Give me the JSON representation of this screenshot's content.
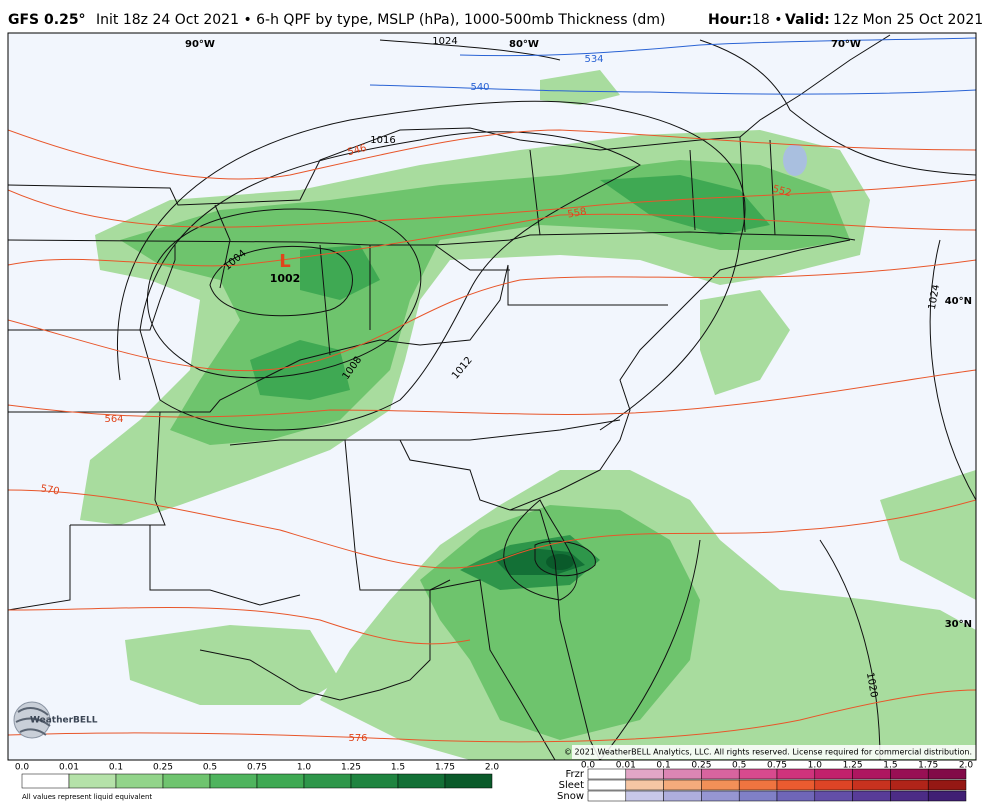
{
  "header": {
    "model": "GFS 0.25°",
    "description": "Init 18z 24 Oct 2021 • 6-h QPF by type, MSLP (hPa), 1000-500mb Thickness (dm)",
    "hour_label": "Hour:",
    "hour": "18 •",
    "valid_label": "Valid:",
    "valid": "12z Mon 25 Oct 2021"
  },
  "map": {
    "longitudes": [
      "90°W",
      "80°W",
      "70°W"
    ],
    "latitudes": [
      "40°N",
      "30°N"
    ],
    "isobars": [
      "1024",
      "1016",
      "1004",
      "1008",
      "1012",
      "1024",
      "1020"
    ],
    "thickness": [
      "534",
      "540",
      "546",
      "552",
      "558",
      "564",
      "570",
      "576"
    ],
    "low": {
      "symbol": "L",
      "pressure": "1002"
    },
    "logo": "WeatherBELL",
    "copyright": "© 2021 WeatherBELL Analytics, LLC. All rights reserved. License required for commercial distribution."
  },
  "qpf_legend": {
    "ticks": [
      "0.0",
      "0.01",
      "0.1",
      "0.25",
      "0.5",
      "0.75",
      "1.0",
      "1.25",
      "1.5",
      "1.75",
      "2.0"
    ],
    "colors": [
      "#ffffff",
      "#b5e2a9",
      "#92d48a",
      "#6fc46f",
      "#4fb45e",
      "#3fa953",
      "#2e964a",
      "#1f8440",
      "#137036",
      "#0a5a2a"
    ],
    "note": "All values represent liquid equivalent"
  },
  "type_legend": {
    "ticks": [
      "0.0",
      "0.01",
      "0.1",
      "0.25",
      "0.5",
      "0.75",
      "1.0",
      "1.25",
      "1.5",
      "1.75",
      "2.0"
    ],
    "types": [
      {
        "name": "Frzr",
        "colors": [
          "#ffffff",
          "#e2a6c6",
          "#dc86b4",
          "#d8649f",
          "#d84a8e",
          "#d0337c",
          "#c2216c",
          "#ae1660",
          "#980f54",
          "#820a48"
        ]
      },
      {
        "name": "Sleet",
        "colors": [
          "#ffffff",
          "#f6c6a4",
          "#f4ab7c",
          "#f29058",
          "#ef7440",
          "#ea5b30",
          "#dd4426",
          "#c8321f",
          "#b02419",
          "#951814"
        ]
      },
      {
        "name": "Snow",
        "colors": [
          "#ffffff",
          "#c8c8e8",
          "#aeaedd",
          "#9696d2",
          "#8080c6",
          "#6f66b8",
          "#634fa8",
          "#583c98",
          "#4c2c86",
          "#401f74"
        ]
      }
    ]
  }
}
